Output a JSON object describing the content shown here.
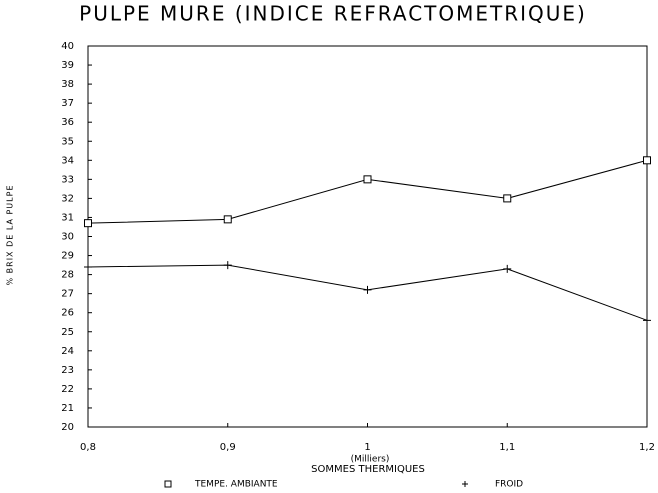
{
  "chart_data": {
    "type": "line",
    "title": "PULPE MURE (INDICE REFRACTOMETRIQUE)",
    "y_label": "% BRIX DE LA PULPE",
    "x_label": "SOMMES THERMIQUES",
    "x_unit": "(Milliers)",
    "x": [
      0.8,
      0.9,
      1,
      1.1,
      1.2
    ],
    "xlim": [
      0.8,
      1.2
    ],
    "xticks": [
      {
        "value": 0.8,
        "label": "0,8"
      },
      {
        "value": 0.9,
        "label": "0,9"
      },
      1,
      {
        "value": 1.1,
        "label": "1,1"
      },
      {
        "value": 1.2,
        "label": "1,2"
      }
    ],
    "ylim": [
      20,
      40
    ],
    "yticks": [
      20,
      21,
      22,
      23,
      24,
      25,
      26,
      27,
      28,
      29,
      30,
      31,
      32,
      33,
      34,
      35,
      36,
      37,
      38,
      39,
      40
    ],
    "series": [
      {
        "name": "TEMPE. AMBIANTE",
        "color": "#000000",
        "marker": "square",
        "values": [
          30.7,
          30.9,
          33.0,
          32.0,
          34.0
        ]
      },
      {
        "name": "FROID",
        "color": "#000000",
        "marker": "plus",
        "values": [
          28.4,
          28.5,
          27.2,
          28.3,
          25.6
        ]
      }
    ]
  }
}
